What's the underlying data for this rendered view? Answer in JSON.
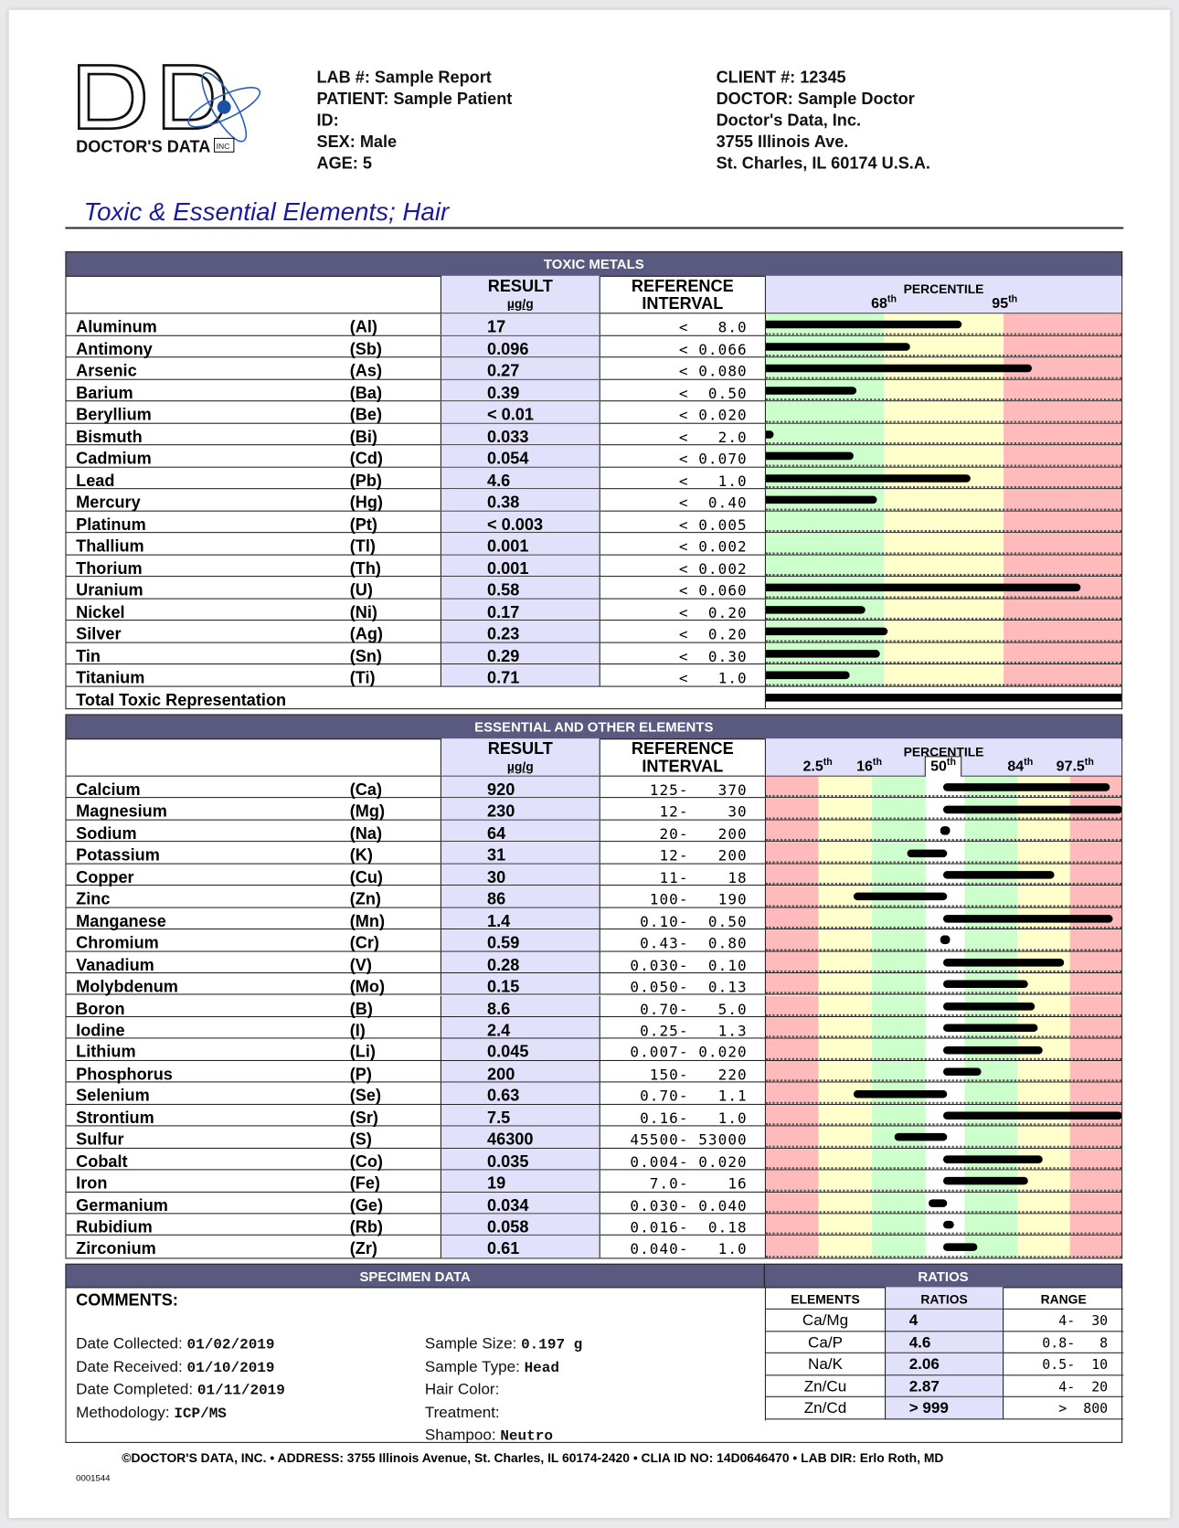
{
  "header": {
    "lab": "LAB #: Sample Report",
    "patient": "PATIENT: Sample Patient",
    "id": "ID:",
    "sex": "SEX: Male",
    "age": "AGE: 5",
    "client": "CLIENT #: 12345",
    "doctor": "DOCTOR: Sample Doctor",
    "company": "Doctor's Data, Inc.",
    "street": "3755 Illinois Ave.",
    "city": "St. Charles, IL 60174 U.S.A.",
    "logo_text": "DOCTOR'S DATA INC"
  },
  "title": "Toxic & Essential Elements; Hair",
  "colors": {
    "band": "#5a5a80",
    "result_bg": "#e1e1fb",
    "green": "#ccffcc",
    "yellow": "#ffffcc",
    "red": "#ffbbbb",
    "title": "#1a1a9e"
  },
  "toxic": {
    "title": "TOXIC METALS",
    "result_label": "RESULT",
    "unit": "µg/g",
    "ref_label1": "REFERENCE",
    "ref_label2": "INTERVAL",
    "percentile": "PERCENTILE",
    "p1": "68",
    "p2": "95",
    "sup": "th",
    "rows": [
      {
        "name": "Aluminum",
        "sym": "(Al)",
        "result": "17",
        "ref": "<   8.0",
        "bar": 0.548
      },
      {
        "name": "Antimony",
        "sym": "(Sb)",
        "result": "0.096",
        "ref": "< 0.066",
        "bar": 0.405
      },
      {
        "name": "Arsenic",
        "sym": "(As)",
        "result": "0.27",
        "ref": "< 0.080",
        "bar": 0.745
      },
      {
        "name": "Barium",
        "sym": "(Ba)",
        "result": "0.39",
        "ref": "<  0.50",
        "bar": 0.255
      },
      {
        "name": "Beryllium",
        "sym": "(Be)",
        "result": "< 0.01",
        "ref": "< 0.020",
        "bar": 0
      },
      {
        "name": "Bismuth",
        "sym": "(Bi)",
        "result": "0.033",
        "ref": "<   2.0",
        "bar": 0.014
      },
      {
        "name": "Cadmium",
        "sym": "(Cd)",
        "result": "0.054",
        "ref": "< 0.070",
        "bar": 0.247
      },
      {
        "name": "Lead",
        "sym": "(Pb)",
        "result": "4.6",
        "ref": "<   1.0",
        "bar": 0.573
      },
      {
        "name": "Mercury",
        "sym": "(Hg)",
        "result": "0.38",
        "ref": "<  0.40",
        "bar": 0.312
      },
      {
        "name": "Platinum",
        "sym": "(Pt)",
        "result": "< 0.003",
        "ref": "< 0.005",
        "bar": 0
      },
      {
        "name": "Thallium",
        "sym": "(Tl)",
        "result": "0.001",
        "ref": "< 0.002",
        "bar": 0
      },
      {
        "name": "Thorium",
        "sym": "(Th)",
        "result": "0.001",
        "ref": "< 0.002",
        "bar": 0
      },
      {
        "name": "Uranium",
        "sym": "(U)",
        "result": "0.58",
        "ref": "< 0.060",
        "bar": 0.882
      },
      {
        "name": "Nickel",
        "sym": "(Ni)",
        "result": "0.17",
        "ref": "<  0.20",
        "bar": 0.279
      },
      {
        "name": "Silver",
        "sym": "(Ag)",
        "result": "0.23",
        "ref": "<  0.20",
        "bar": 0.342
      },
      {
        "name": "Tin",
        "sym": "(Sn)",
        "result": "0.29",
        "ref": "<  0.30",
        "bar": 0.321
      },
      {
        "name": "Titanium",
        "sym": "(Ti)",
        "result": "0.71",
        "ref": "<   1.0",
        "bar": 0.236
      }
    ],
    "total_label": "Total Toxic Representation",
    "total_bar": 1.0
  },
  "essential": {
    "title": "ESSENTIAL AND OTHER ELEMENTS",
    "result_label": "RESULT",
    "unit": "µg/g",
    "ref_label1": "REFERENCE",
    "ref_label2": "INTERVAL",
    "percentile": "PERCENTILE",
    "ticks": [
      "2.5",
      "16",
      "50",
      "84",
      "97.5"
    ],
    "sup": "th",
    "rows": [
      {
        "name": "Calcium",
        "sym": "(Ca)",
        "result": "920",
        "ref": "125-   370",
        "bar": [
          0.496,
          0.964
        ]
      },
      {
        "name": "Magnesium",
        "sym": "(Mg)",
        "result": "230",
        "ref": "12-    30",
        "bar": [
          0.496,
          1.0
        ]
      },
      {
        "name": "Sodium",
        "sym": "(Na)",
        "result": "64",
        "ref": "20-   200",
        "bar": [
          0.501,
          0.501
        ]
      },
      {
        "name": "Potassium",
        "sym": "(K)",
        "result": "31",
        "ref": "12-   200",
        "bar": [
          0.397,
          0.507
        ]
      },
      {
        "name": "Copper",
        "sym": "(Cu)",
        "result": "30",
        "ref": "11-    18",
        "bar": [
          0.496,
          0.808
        ]
      },
      {
        "name": "Zinc",
        "sym": "(Zn)",
        "result": "86",
        "ref": "100-   190",
        "bar": [
          0.247,
          0.507
        ]
      },
      {
        "name": "Manganese",
        "sym": "(Mn)",
        "result": "1.4",
        "ref": "0.10-  0.50",
        "bar": [
          0.496,
          0.973
        ]
      },
      {
        "name": "Chromium",
        "sym": "(Cr)",
        "result": "0.59",
        "ref": "0.43-  0.80",
        "bar": [
          0.501,
          0.501
        ]
      },
      {
        "name": "Vanadium",
        "sym": "(V)",
        "result": "0.28",
        "ref": "0.030-  0.10",
        "bar": [
          0.496,
          0.836
        ]
      },
      {
        "name": "Molybdenum",
        "sym": "(Mo)",
        "result": "0.15",
        "ref": "0.050-  0.13",
        "bar": [
          0.496,
          0.734
        ]
      },
      {
        "name": "Boron",
        "sym": "(B)",
        "result": "8.6",
        "ref": "0.70-   5.0",
        "bar": [
          0.496,
          0.753
        ]
      },
      {
        "name": "Iodine",
        "sym": "(I)",
        "result": "2.4",
        "ref": "0.25-   1.3",
        "bar": [
          0.496,
          0.762
        ]
      },
      {
        "name": "Lithium",
        "sym": "(Li)",
        "result": "0.045",
        "ref": "0.007- 0.020",
        "bar": [
          0.496,
          0.775
        ]
      },
      {
        "name": "Phosphorus",
        "sym": "(P)",
        "result": "200",
        "ref": "150-   220",
        "bar": [
          0.496,
          0.603
        ]
      },
      {
        "name": "Selenium",
        "sym": "(Se)",
        "result": "0.63",
        "ref": "0.70-   1.1",
        "bar": [
          0.247,
          0.507
        ]
      },
      {
        "name": "Strontium",
        "sym": "(Sr)",
        "result": "7.5",
        "ref": "0.16-   1.0",
        "bar": [
          0.496,
          1.0
        ]
      },
      {
        "name": "Sulfur",
        "sym": "(S)",
        "result": "46300",
        "ref": "45500- 53000",
        "bar": [
          0.362,
          0.507
        ]
      },
      {
        "name": "Cobalt",
        "sym": "(Co)",
        "result": "0.035",
        "ref": "0.004- 0.020",
        "bar": [
          0.496,
          0.775
        ]
      },
      {
        "name": "Iron",
        "sym": "(Fe)",
        "result": "19",
        "ref": "7.0-    16",
        "bar": [
          0.496,
          0.734
        ]
      },
      {
        "name": "Germanium",
        "sym": "(Ge)",
        "result": "0.034",
        "ref": "0.030- 0.040",
        "bar": [
          0.456,
          0.507
        ]
      },
      {
        "name": "Rubidium",
        "sym": "(Rb)",
        "result": "0.058",
        "ref": "0.016-  0.18",
        "bar": [
          0.496,
          0.526
        ]
      },
      {
        "name": "Zirconium",
        "sym": "(Zr)",
        "result": "0.61",
        "ref": "0.040-   1.0",
        "bar": [
          0.496,
          0.592
        ]
      }
    ]
  },
  "specimen": {
    "title": "SPECIMEN DATA",
    "comments": "COMMENTS:",
    "left": [
      {
        "label": "Date Collected:",
        "value": "01/02/2019"
      },
      {
        "label": "Date Received:",
        "value": "01/10/2019"
      },
      {
        "label": "Date Completed:",
        "value": "01/11/2019"
      },
      {
        "label": "Methodology:",
        "value": "ICP/MS"
      }
    ],
    "right": [
      {
        "label": "Sample Size:",
        "value": "0.197 g"
      },
      {
        "label": "Sample Type:",
        "value": "Head"
      },
      {
        "label": "Hair Color:",
        "value": ""
      },
      {
        "label": "Treatment:",
        "value": ""
      },
      {
        "label": "Shampoo:",
        "value": "Neutro"
      }
    ]
  },
  "ratios": {
    "title": "RATIOS",
    "cols": [
      "ELEMENTS",
      "RATIOS",
      "RANGE"
    ],
    "rows": [
      {
        "el": "Ca/Mg",
        "ratio": "4",
        "range": "4-  30"
      },
      {
        "el": "Ca/P",
        "ratio": "4.6",
        "range": "0.8-   8"
      },
      {
        "el": "Na/K",
        "ratio": "2.06",
        "range": "0.5-  10"
      },
      {
        "el": "Zn/Cu",
        "ratio": "2.87",
        "range": "4-  20"
      },
      {
        "el": "Zn/Cd",
        "ratio": "> 999",
        "range": ">  800"
      }
    ]
  },
  "footer": "©DOCTOR'S DATA, INC. • ADDRESS: 3755 Illinois Avenue, St. Charles, IL 60174-2420 • CLIA ID NO: 14D0646470 • LAB DIR: Erlo Roth, MD",
  "doc_number": "0001544"
}
